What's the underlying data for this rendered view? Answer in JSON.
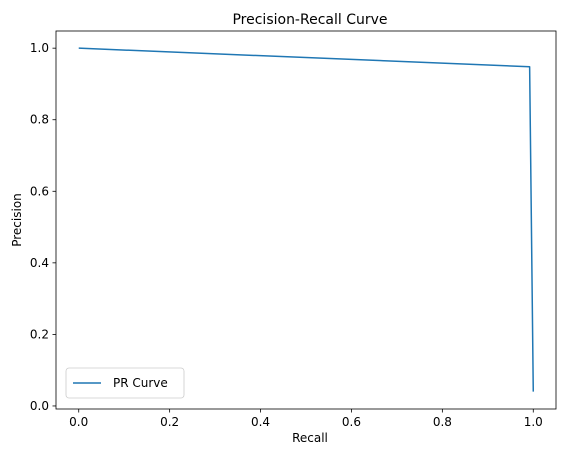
{
  "chart_data": {
    "type": "line",
    "title": "Precision-Recall Curve",
    "xlabel": "Recall",
    "ylabel": "Precision",
    "xlim": [
      -0.05,
      1.05
    ],
    "ylim": [
      -0.0085,
      1.048
    ],
    "x_ticks": [
      0.0,
      0.2,
      0.4,
      0.6,
      0.8,
      1.0
    ],
    "y_ticks": [
      0.0,
      0.2,
      0.4,
      0.6,
      0.8,
      1.0
    ],
    "x_tick_labels": [
      "0.0",
      "0.2",
      "0.4",
      "0.6",
      "0.8",
      "1.0"
    ],
    "y_tick_labels": [
      "0.0",
      "0.2",
      "0.4",
      "0.6",
      "0.8",
      "1.0"
    ],
    "grid": false,
    "legend_position": "lower-left",
    "series": [
      {
        "name": "PR Curve",
        "color": "#1f77b4",
        "x": [
          0.0,
          0.992,
          1.0
        ],
        "y": [
          1.0,
          0.948,
          0.04
        ]
      }
    ]
  }
}
